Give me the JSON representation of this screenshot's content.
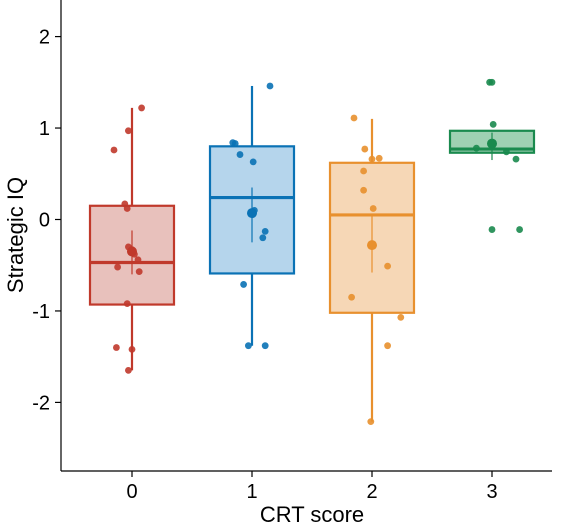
{
  "chart_data": {
    "type": "box",
    "title": "",
    "xlabel": "CRT score",
    "ylabel": "Strategic IQ",
    "categories": [
      "0",
      "1",
      "2",
      "3"
    ],
    "ylim": [
      -2.75,
      2.4
    ],
    "yticks": [
      -2,
      -1,
      0,
      1,
      2
    ],
    "ytick_labels": [
      "-2",
      "-1",
      "0",
      "1",
      "2"
    ],
    "grid": false,
    "legend": "none",
    "colors": [
      "#C0392B",
      "#0A72B5",
      "#E8902E",
      "#1A8A4E"
    ],
    "fills": [
      "#E8C1BC",
      "#B5D5EC",
      "#F6D7B6",
      "#9FD1B3"
    ],
    "boxes": [
      {
        "category": "0",
        "q1": -0.93,
        "median": -0.47,
        "q3": 0.15,
        "whisker_low": -1.65,
        "whisker_high": 1.22,
        "mean": -0.35,
        "ci": [
          -0.12,
          -0.6
        ]
      },
      {
        "category": "1",
        "q1": -0.59,
        "median": 0.24,
        "q3": 0.8,
        "whisker_low": -1.38,
        "whisker_high": 1.46,
        "mean": 0.07,
        "ci": [
          0.35,
          -0.25
        ]
      },
      {
        "category": "2",
        "q1": -1.02,
        "median": 0.05,
        "q3": 0.62,
        "whisker_low": -2.21,
        "whisker_high": 1.1,
        "mean": -0.28,
        "ci": [
          0.05,
          -0.58
        ]
      },
      {
        "category": "3",
        "q1": 0.73,
        "median": 0.77,
        "q3": 0.97,
        "whisker_low": 0.73,
        "whisker_high": 0.97,
        "mean": 0.83,
        "ci": [
          0.95,
          0.65
        ]
      }
    ],
    "points": [
      {
        "x": 0.08,
        "y": 1.22,
        "g": 0
      },
      {
        "x": -0.03,
        "y": 0.97,
        "g": 0
      },
      {
        "x": -0.15,
        "y": 0.76,
        "g": 0
      },
      {
        "x": -0.06,
        "y": 0.17,
        "g": 0
      },
      {
        "x": -0.04,
        "y": 0.12,
        "g": 0
      },
      {
        "x": -0.03,
        "y": -0.3,
        "g": 0
      },
      {
        "x": 0.0,
        "y": -0.33,
        "g": 0
      },
      {
        "x": 0.02,
        "y": -0.38,
        "g": 0
      },
      {
        "x": 0.05,
        "y": -0.44,
        "g": 0
      },
      {
        "x": -0.12,
        "y": -0.52,
        "g": 0
      },
      {
        "x": 0.06,
        "y": -0.57,
        "g": 0
      },
      {
        "x": -0.04,
        "y": -0.92,
        "g": 0
      },
      {
        "x": -0.13,
        "y": -1.4,
        "g": 0
      },
      {
        "x": 0.0,
        "y": -1.42,
        "g": 0
      },
      {
        "x": -0.03,
        "y": -1.65,
        "g": 0
      },
      {
        "x": 1.15,
        "y": 1.46,
        "g": 1
      },
      {
        "x": -0.16,
        "y": 0.84,
        "g": 1
      },
      {
        "x": -0.14,
        "y": 0.83,
        "g": 1
      },
      {
        "x": -0.1,
        "y": 0.71,
        "g": 1
      },
      {
        "x": 0.01,
        "y": 0.63,
        "g": 1
      },
      {
        "x": 0.02,
        "y": 0.1,
        "g": 1
      },
      {
        "x": 0.11,
        "y": -0.13,
        "g": 1
      },
      {
        "x": 0.09,
        "y": -0.2,
        "g": 1
      },
      {
        "x": -0.07,
        "y": -0.71,
        "g": 1
      },
      {
        "x": -0.03,
        "y": -1.38,
        "g": 1
      },
      {
        "x": 0.11,
        "y": -1.38,
        "g": 1
      },
      {
        "x": -0.15,
        "y": 1.11,
        "g": 2
      },
      {
        "x": -0.06,
        "y": 0.77,
        "g": 2
      },
      {
        "x": 0.0,
        "y": 0.66,
        "g": 2
      },
      {
        "x": 0.06,
        "y": 0.67,
        "g": 2
      },
      {
        "x": -0.07,
        "y": 0.53,
        "g": 2
      },
      {
        "x": -0.07,
        "y": 0.32,
        "g": 2
      },
      {
        "x": 0.01,
        "y": 0.12,
        "g": 2
      },
      {
        "x": 0.13,
        "y": -0.51,
        "g": 2
      },
      {
        "x": -0.17,
        "y": -0.85,
        "g": 2
      },
      {
        "x": 0.24,
        "y": -1.07,
        "g": 2
      },
      {
        "x": 0.13,
        "y": -1.38,
        "g": 2
      },
      {
        "x": -0.01,
        "y": -2.21,
        "g": 2
      },
      {
        "x": -0.02,
        "y": 1.5,
        "g": 3
      },
      {
        "x": 0.0,
        "y": 1.5,
        "g": 3
      },
      {
        "x": 0.01,
        "y": 1.04,
        "g": 3
      },
      {
        "x": -0.13,
        "y": 0.78,
        "g": 3
      },
      {
        "x": 0.12,
        "y": 0.74,
        "g": 3
      },
      {
        "x": 0.2,
        "y": 0.66,
        "g": 3
      },
      {
        "x": 0.0,
        "y": -0.11,
        "g": 3
      },
      {
        "x": 0.23,
        "y": -0.11,
        "g": 3
      }
    ]
  }
}
